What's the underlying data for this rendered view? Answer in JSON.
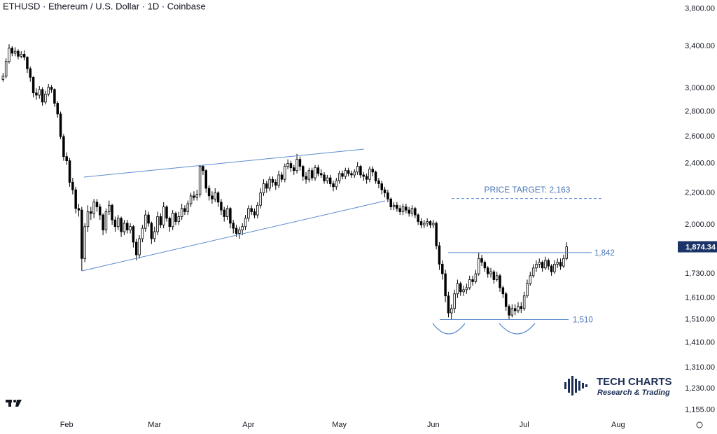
{
  "chart_data": {
    "type": "candlestick",
    "title": "ETHUSD · Ethereum / U.S. Dollar · 1D · Coinbase",
    "log_scale": true,
    "up_color": "#ffffff",
    "down_color": "#000000",
    "wick_color": "#000000",
    "line_color": "#5b8ad0",
    "xlim": [
      -1,
      222
    ],
    "xticks": [
      {
        "value": 21,
        "label": "Feb"
      },
      {
        "value": 50,
        "label": "Mar"
      },
      {
        "value": 81,
        "label": "Apr"
      },
      {
        "value": 111,
        "label": "May"
      },
      {
        "value": 142,
        "label": "Jun"
      },
      {
        "value": 172,
        "label": "Jul"
      },
      {
        "value": 203,
        "label": "Aug"
      }
    ],
    "ylim": [
      1130,
      3900
    ],
    "yticks": [
      {
        "value": 3800,
        "label": "3,800.00"
      },
      {
        "value": 3400,
        "label": "3,400.00"
      },
      {
        "value": 3000,
        "label": "3,000.00"
      },
      {
        "value": 2800,
        "label": "2,800.00"
      },
      {
        "value": 2600,
        "label": "2,600.00"
      },
      {
        "value": 2400,
        "label": "2,400.00"
      },
      {
        "value": 2200,
        "label": "2,200.00"
      },
      {
        "value": 2000,
        "label": "2,000.00"
      },
      {
        "value": 1730,
        "label": "1,730.00"
      },
      {
        "value": 1610,
        "label": "1,610.00"
      },
      {
        "value": 1510,
        "label": "1,510.00"
      },
      {
        "value": 1410,
        "label": "1,410.00"
      },
      {
        "value": 1310,
        "label": "1,310.00"
      },
      {
        "value": 1230,
        "label": "1,230.00"
      },
      {
        "value": 1155,
        "label": "1,155.00"
      }
    ],
    "last_price": {
      "value": 1874.34,
      "label": "1,874.34"
    },
    "levels": [
      {
        "value": 1842,
        "label": "1,842"
      },
      {
        "value": 1510,
        "label": "1,510"
      }
    ],
    "price_target": {
      "value": 2163,
      "label": "PRICE TARGET: 2,163"
    },
    "open": [
      3080,
      3110,
      3250,
      3380,
      3330,
      3350,
      3300,
      3320,
      3290,
      3180,
      3100,
      2960,
      2940,
      2990,
      2880,
      2950,
      3010,
      2990,
      2870,
      2780,
      2600,
      2450,
      2420,
      2270,
      2220,
      2100,
      2090,
      1810,
      1990,
      2080,
      2070,
      2140,
      2110,
      2060,
      1970,
      2080,
      2120,
      2030,
      1990,
      2040,
      1960,
      2010,
      1970,
      1990,
      1900,
      1830,
      1920,
      1980,
      2060,
      2010,
      1920,
      1960,
      2050,
      2000,
      2110,
      2040,
      1990,
      2070,
      2020,
      2050,
      2100,
      2080,
      2130,
      2180,
      2170,
      2190,
      2380,
      2350,
      2230,
      2180,
      2160,
      2200,
      2140,
      2090,
      2050,
      2100,
      2010,
      1980,
      1950,
      1970,
      1990,
      2040,
      2100,
      2080,
      2060,
      2120,
      2200,
      2260,
      2230,
      2290,
      2270,
      2250,
      2320,
      2290,
      2380,
      2400,
      2370,
      2350,
      2430,
      2380,
      2310,
      2290,
      2350,
      2300,
      2370,
      2330,
      2320,
      2280,
      2300,
      2260,
      2240,
      2280,
      2330,
      2310,
      2350,
      2330,
      2320,
      2340,
      2380,
      2320,
      2310,
      2290,
      2360,
      2340,
      2280,
      2260,
      2220,
      2200,
      2160,
      2110,
      2120,
      2100,
      2080,
      2110,
      2090,
      2070,
      2100,
      2060,
      2020,
      2000,
      2010,
      2020,
      2000,
      2010,
      1880,
      1780,
      1730,
      1620,
      1540,
      1560,
      1630,
      1680,
      1640,
      1650,
      1660,
      1700,
      1690,
      1730,
      1810,
      1790,
      1760,
      1730,
      1740,
      1700,
      1720,
      1660,
      1630,
      1570,
      1530,
      1560,
      1550,
      1570,
      1560,
      1620,
      1680,
      1720,
      1760,
      1780,
      1790,
      1760,
      1800,
      1770,
      1740,
      1780,
      1790,
      1770,
      1810
    ],
    "high": [
      3140,
      3280,
      3420,
      3400,
      3390,
      3370,
      3350,
      3360,
      3300,
      3200,
      3110,
      3000,
      3020,
      3010,
      2980,
      3040,
      3030,
      3000,
      2890,
      2800,
      2620,
      2480,
      2440,
      2300,
      2240,
      2130,
      2110,
      2010,
      2120,
      2110,
      2160,
      2160,
      2130,
      2070,
      2100,
      2150,
      2130,
      2050,
      2060,
      2050,
      2030,
      2030,
      2010,
      2000,
      1920,
      1940,
      2000,
      2090,
      2080,
      2020,
      1990,
      2080,
      2070,
      2140,
      2120,
      2050,
      2090,
      2080,
      2080,
      2130,
      2120,
      2150,
      2200,
      2210,
      2220,
      2390,
      2390,
      2360,
      2250,
      2210,
      2230,
      2210,
      2160,
      2110,
      2120,
      2110,
      2030,
      2000,
      1990,
      2010,
      2060,
      2120,
      2120,
      2100,
      2140,
      2230,
      2290,
      2280,
      2310,
      2310,
      2290,
      2350,
      2340,
      2400,
      2430,
      2420,
      2390,
      2470,
      2450,
      2390,
      2340,
      2370,
      2370,
      2390,
      2390,
      2360,
      2340,
      2320,
      2320,
      2280,
      2300,
      2350,
      2350,
      2370,
      2370,
      2350,
      2360,
      2410,
      2390,
      2340,
      2330,
      2380,
      2380,
      2350,
      2300,
      2280,
      2240,
      2220,
      2170,
      2140,
      2140,
      2120,
      2130,
      2130,
      2110,
      2120,
      2110,
      2070,
      2040,
      2030,
      2040,
      2030,
      2030,
      2020,
      1900,
      1800,
      1750,
      1640,
      1580,
      1650,
      1700,
      1690,
      1670,
      1680,
      1720,
      1720,
      1750,
      1842,
      1830,
      1800,
      1770,
      1760,
      1750,
      1740,
      1730,
      1670,
      1640,
      1580,
      1580,
      1580,
      1590,
      1590,
      1640,
      1700,
      1740,
      1780,
      1800,
      1810,
      1800,
      1820,
      1810,
      1780,
      1800,
      1810,
      1810,
      1830,
      1900
    ],
    "low": [
      3060,
      3090,
      3230,
      3300,
      3300,
      3270,
      3280,
      3260,
      3140,
      3060,
      2920,
      2900,
      2910,
      2850,
      2860,
      2930,
      2960,
      2840,
      2750,
      2580,
      2420,
      2390,
      2240,
      2190,
      2070,
      2050,
      1745,
      1790,
      1960,
      2030,
      2040,
      2080,
      2030,
      1940,
      1950,
      2060,
      2000,
      1960,
      1970,
      1930,
      1940,
      1950,
      1950,
      1870,
      1800,
      1810,
      1900,
      1960,
      1990,
      1890,
      1900,
      1940,
      1980,
      1980,
      2020,
      1960,
      1970,
      2000,
      2000,
      2030,
      2060,
      2060,
      2110,
      2150,
      2150,
      2170,
      2320,
      2200,
      2150,
      2130,
      2140,
      2110,
      2060,
      2020,
      2030,
      1980,
      1950,
      1930,
      1920,
      1940,
      1970,
      2020,
      2060,
      2040,
      2040,
      2100,
      2180,
      2200,
      2210,
      2240,
      2220,
      2230,
      2270,
      2270,
      2360,
      2340,
      2320,
      2330,
      2350,
      2280,
      2260,
      2270,
      2280,
      2280,
      2310,
      2300,
      2260,
      2260,
      2240,
      2210,
      2220,
      2260,
      2290,
      2290,
      2310,
      2300,
      2300,
      2320,
      2300,
      2280,
      2260,
      2270,
      2310,
      2260,
      2230,
      2190,
      2170,
      2140,
      2090,
      2090,
      2080,
      2060,
      2060,
      2070,
      2050,
      2050,
      2040,
      2000,
      1980,
      1980,
      1990,
      1980,
      1980,
      1860,
      1750,
      1700,
      1590,
      1520,
      1510,
      1540,
      1610,
      1620,
      1620,
      1630,
      1650,
      1670,
      1680,
      1720,
      1770,
      1740,
      1710,
      1710,
      1680,
      1690,
      1640,
      1610,
      1550,
      1510,
      1520,
      1530,
      1540,
      1540,
      1550,
      1610,
      1670,
      1710,
      1740,
      1760,
      1740,
      1750,
      1750,
      1720,
      1730,
      1760,
      1750,
      1760,
      1800
    ],
    "close": [
      3110,
      3250,
      3380,
      3330,
      3350,
      3300,
      3320,
      3290,
      3180,
      3100,
      2960,
      2940,
      2990,
      2880,
      2950,
      3010,
      2990,
      2870,
      2780,
      2600,
      2450,
      2420,
      2270,
      2220,
      2100,
      2090,
      1810,
      1990,
      2080,
      2070,
      2140,
      2110,
      2060,
      1970,
      2080,
      2120,
      2030,
      1990,
      2040,
      1960,
      2010,
      1970,
      1990,
      1900,
      1830,
      1920,
      1980,
      2060,
      2010,
      1920,
      1960,
      2050,
      2000,
      2110,
      2040,
      1990,
      2070,
      2020,
      2050,
      2100,
      2080,
      2130,
      2180,
      2170,
      2190,
      2380,
      2350,
      2230,
      2180,
      2160,
      2200,
      2140,
      2090,
      2050,
      2100,
      2010,
      1980,
      1950,
      1970,
      1990,
      2040,
      2100,
      2080,
      2060,
      2120,
      2200,
      2260,
      2230,
      2290,
      2270,
      2250,
      2320,
      2290,
      2380,
      2400,
      2370,
      2350,
      2430,
      2380,
      2310,
      2290,
      2350,
      2300,
      2370,
      2330,
      2320,
      2280,
      2300,
      2260,
      2240,
      2280,
      2330,
      2310,
      2350,
      2330,
      2320,
      2340,
      2380,
      2320,
      2310,
      2290,
      2360,
      2340,
      2280,
      2260,
      2220,
      2200,
      2160,
      2110,
      2120,
      2100,
      2080,
      2110,
      2090,
      2070,
      2100,
      2060,
      2020,
      2000,
      2010,
      2020,
      2000,
      2010,
      1880,
      1780,
      1730,
      1620,
      1540,
      1560,
      1630,
      1680,
      1640,
      1650,
      1660,
      1700,
      1690,
      1730,
      1810,
      1790,
      1760,
      1730,
      1740,
      1700,
      1720,
      1660,
      1630,
      1570,
      1530,
      1560,
      1550,
      1570,
      1560,
      1620,
      1680,
      1720,
      1760,
      1780,
      1790,
      1760,
      1800,
      1770,
      1740,
      1780,
      1790,
      1770,
      1810,
      1874
    ]
  },
  "logo": {
    "name": "TECH CHARTS",
    "tagline": "Research & Trading"
  }
}
